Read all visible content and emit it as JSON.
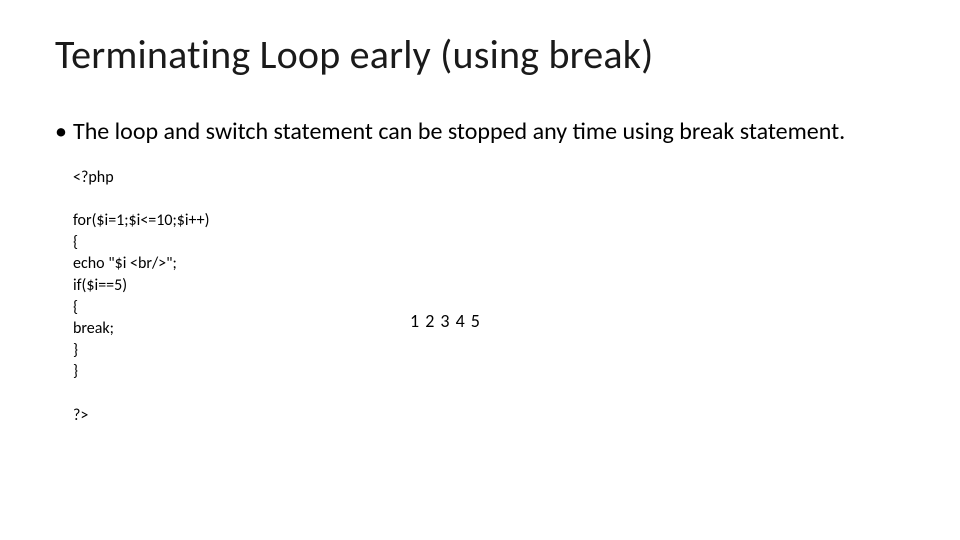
{
  "slide": {
    "title": "Terminating Loop early (using break)",
    "bullet": "The loop and switch statement can be stopped any time using break statement.",
    "code_lines": [
      "<?php",
      "",
      "for($i=1;$i<=10;$i++)",
      "{",
      "echo \"$i <br/>\";",
      "if($i==5)",
      "{",
      "break;",
      "}",
      "}",
      "",
      "?>"
    ],
    "output": "1 2 3 4 5"
  },
  "style": {
    "background_color": "#ffffff",
    "text_color": "#000000",
    "title_fontsize": 40,
    "body_fontsize": 24,
    "code_fontsize": 16,
    "output_fontsize": 18,
    "font_family": "Calibri"
  }
}
